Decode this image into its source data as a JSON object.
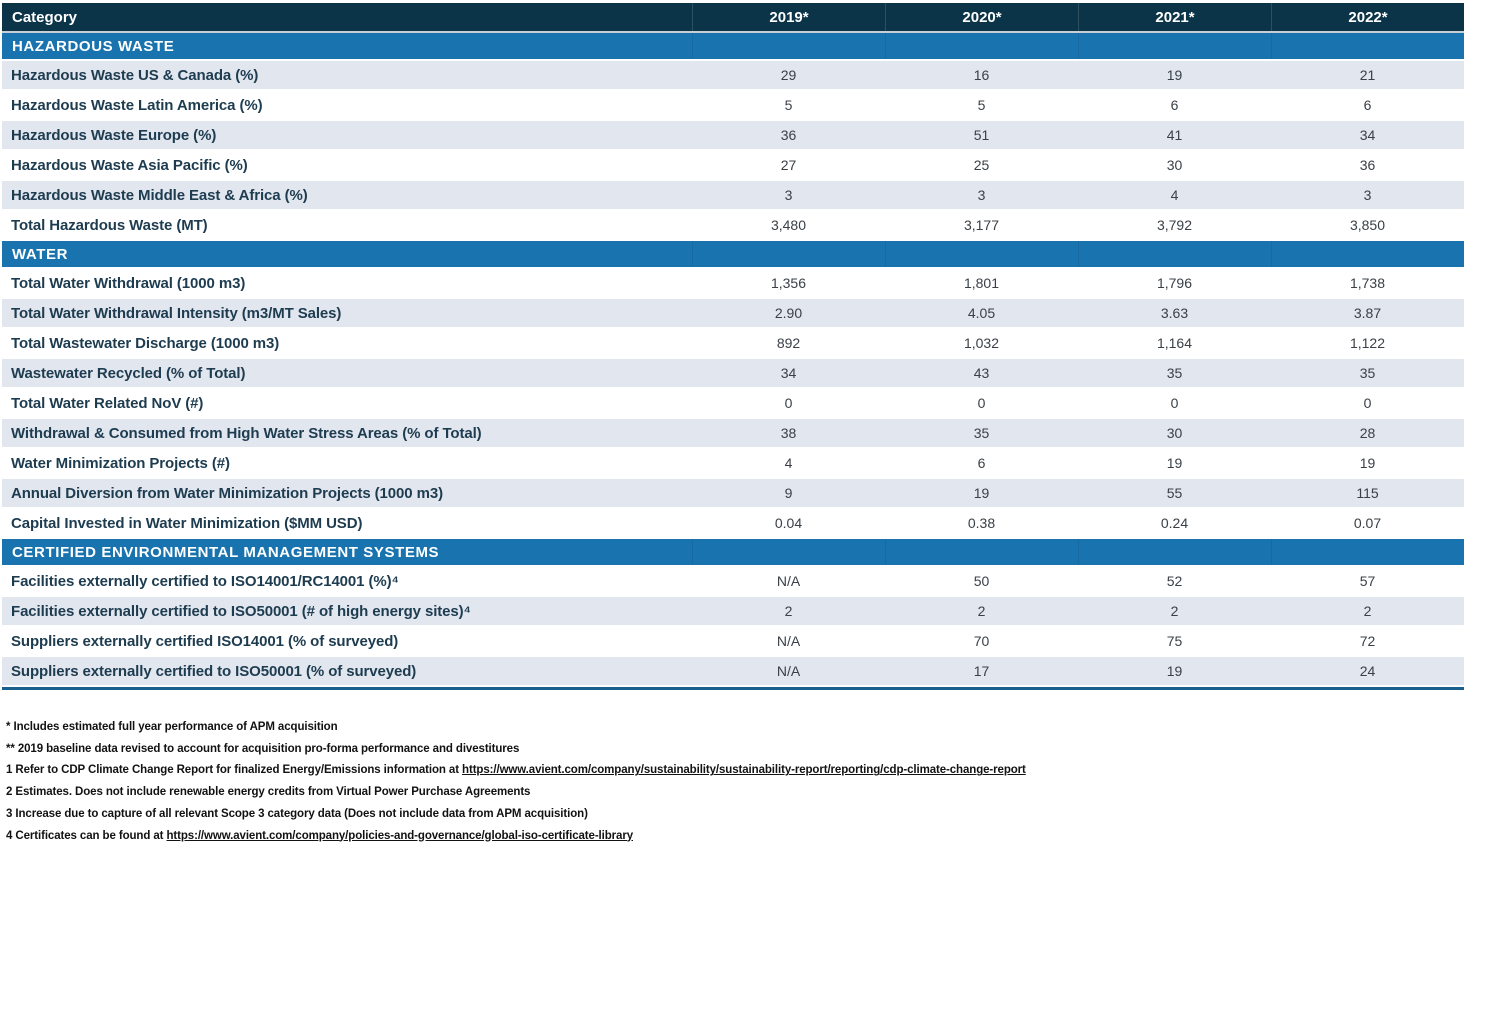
{
  "colors": {
    "header_bg": "#0b3448",
    "section_bg": "#1973ae",
    "row_shaded_bg": "#e1e6ef",
    "label_color": "#1e3c50",
    "value_color": "#3a4047",
    "bottom_border": "#19608e"
  },
  "table": {
    "columns": [
      "Category",
      "2019*",
      "2020*",
      "2021*",
      "2022*"
    ],
    "sections": [
      {
        "title": "HAZARDOUS WASTE",
        "rows": [
          {
            "label": "Hazardous Waste US & Canada (%)",
            "values": [
              "29",
              "16",
              "19",
              "21"
            ]
          },
          {
            "label": "Hazardous Waste Latin America (%)",
            "values": [
              "5",
              "5",
              "6",
              "6"
            ]
          },
          {
            "label": "Hazardous Waste Europe (%)",
            "values": [
              "36",
              "51",
              "41",
              "34"
            ]
          },
          {
            "label": "Hazardous Waste Asia Pacific (%)",
            "values": [
              "27",
              "25",
              "30",
              "36"
            ]
          },
          {
            "label": "Hazardous Waste Middle East & Africa (%)",
            "values": [
              "3",
              "3",
              "4",
              "3"
            ]
          },
          {
            "label": "Total Hazardous Waste (MT)",
            "values": [
              "3,480",
              "3,177",
              "3,792",
              "3,850"
            ]
          }
        ]
      },
      {
        "title": "WATER",
        "rows": [
          {
            "label": "Total Water Withdrawal (1000 m3)",
            "values": [
              "1,356",
              "1,801",
              "1,796",
              "1,738"
            ]
          },
          {
            "label": "Total Water Withdrawal Intensity (m3/MT Sales)",
            "values": [
              "2.90",
              "4.05",
              "3.63",
              "3.87"
            ]
          },
          {
            "label": "Total Wastewater Discharge (1000 m3)",
            "values": [
              "892",
              "1,032",
              "1,164",
              "1,122"
            ]
          },
          {
            "label": "Wastewater Recycled (% of Total)",
            "values": [
              "34",
              "43",
              "35",
              "35"
            ]
          },
          {
            "label": "Total Water Related NoV (#)",
            "values": [
              "0",
              "0",
              "0",
              "0"
            ]
          },
          {
            "label": "Withdrawal & Consumed from High Water Stress Areas (% of Total)",
            "values": [
              "38",
              "35",
              "30",
              "28"
            ]
          },
          {
            "label": "Water Minimization Projects (#)",
            "values": [
              "4",
              "6",
              "19",
              "19"
            ]
          },
          {
            "label": "Annual Diversion from Water Minimization Projects (1000 m3)",
            "values": [
              "9",
              "19",
              "55",
              "115"
            ]
          },
          {
            "label": "Capital Invested in Water Minimization ($MM USD)",
            "values": [
              "0.04",
              "0.38",
              "0.24",
              "0.07"
            ]
          }
        ]
      },
      {
        "title": "CERTIFIED ENVIRONMENTAL MANAGEMENT SYSTEMS",
        "rows": [
          {
            "label": "Facilities externally certified to ISO14001/RC14001 (%)⁴",
            "values": [
              "N/A",
              "50",
              "52",
              "57"
            ]
          },
          {
            "label": "Facilities externally certified to ISO50001 (# of high energy sites)⁴",
            "values": [
              "2",
              "2",
              "2",
              "2"
            ]
          },
          {
            "label": "Suppliers externally certified ISO14001 (% of surveyed)",
            "values": [
              "N/A",
              "70",
              "75",
              "72"
            ]
          },
          {
            "label": "Suppliers externally certified to ISO50001 (% of surveyed)",
            "values": [
              "N/A",
              "17",
              "19",
              "24"
            ]
          }
        ]
      }
    ]
  },
  "footnotes": [
    {
      "text": "* Includes estimated full year performance of APM acquisition"
    },
    {
      "text": "** 2019 baseline data revised to account for acquisition pro-forma performance and divestitures"
    },
    {
      "prefix": "1 Refer to CDP Climate Change Report for finalized Energy/Emissions information at ",
      "link": "https://www.avient.com/company/sustainability/sustainability-report/reporting/cdp-climate-change-report"
    },
    {
      "text": "2 Estimates. Does not include renewable energy credits from Virtual Power Purchase Agreements"
    },
    {
      "text": "3 Increase due to capture of all relevant Scope 3 category data (Does not include data from APM acquisition)"
    },
    {
      "prefix": "4 Certificates can be found at ",
      "link": "https://www.avient.com/company/policies-and-governance/global-iso-certificate-library"
    }
  ]
}
